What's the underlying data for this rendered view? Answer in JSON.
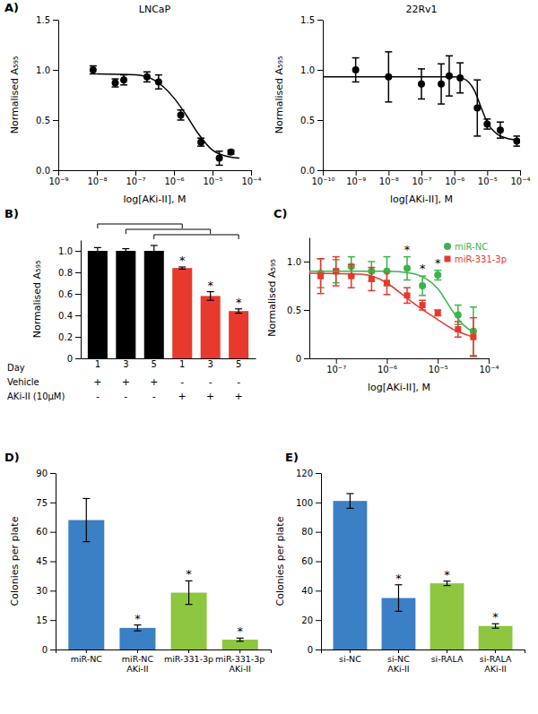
{
  "chart_data": [
    {
      "type": "scatter",
      "panel": "A)",
      "title": "LNCaP",
      "xlabel": "log[AKi-II], M",
      "ylabel": "Normalised A₅₉₅",
      "log": "x",
      "xlim": [
        1e-09,
        0.0001
      ],
      "xticks": [
        {
          "value": 1e-09,
          "label": "10⁻⁹"
        },
        {
          "value": 1e-08,
          "label": "10⁻⁸"
        },
        {
          "value": 1e-07,
          "label": "10⁻⁷"
        },
        {
          "value": 1e-06,
          "label": "10⁻⁶"
        },
        {
          "value": 1e-05,
          "label": "10⁻⁵"
        },
        {
          "value": 0.0001,
          "label": "10⁻⁴"
        }
      ],
      "ylim": [
        0,
        1.5
      ],
      "yticks": [
        {
          "value": 0,
          "label": "0.0"
        },
        0.5,
        {
          "value": 1,
          "label": "1.0"
        },
        1.5
      ],
      "series": [
        {
          "type": "scatter",
          "marker": "circle",
          "color": "#000000",
          "x": [
            8e-09,
            3e-08,
            5e-08,
            2e-07,
            4e-07,
            1.5e-06,
            5e-06,
            1.5e-05,
            3e-05
          ],
          "values": [
            1.0,
            0.87,
            0.9,
            0.93,
            0.88,
            0.55,
            0.28,
            0.12,
            0.18
          ],
          "errors": [
            0.04,
            0.04,
            0.05,
            0.05,
            0.07,
            0.05,
            0.04,
            0.07,
            0.02
          ]
        },
        {
          "type": "line",
          "color": "#000000",
          "x": [
            1e-08,
            1e-07,
            3e-07,
            1e-06,
            2e-06,
            4e-06,
            1e-05,
            3e-05,
            5e-05
          ],
          "values": [
            0.96,
            0.95,
            0.9,
            0.72,
            0.56,
            0.38,
            0.2,
            0.13,
            0.12
          ]
        }
      ]
    },
    {
      "type": "scatter",
      "title": "22Rv1",
      "xlabel": "log[AKi-II], M",
      "ylabel": "Normalised A₅₉₅",
      "log": "x",
      "xlim": [
        1e-10,
        0.0001
      ],
      "xticks": [
        {
          "value": 1e-10,
          "label": "10⁻¹⁰"
        },
        {
          "value": 1e-09,
          "label": "10⁻⁹"
        },
        {
          "value": 1e-08,
          "label": "10⁻⁸"
        },
        {
          "value": 1e-07,
          "label": "10⁻⁷"
        },
        {
          "value": 1e-06,
          "label": "10⁻⁶"
        },
        {
          "value": 1e-05,
          "label": "10⁻⁵"
        },
        {
          "value": 0.0001,
          "label": "10⁻⁴"
        }
      ],
      "ylim": [
        0,
        1.5
      ],
      "yticks": [
        {
          "value": 0,
          "label": "0.0"
        },
        0.5,
        {
          "value": 1,
          "label": "1.0"
        },
        1.5
      ],
      "series": [
        {
          "type": "scatter",
          "marker": "circle",
          "color": "#000000",
          "x": [
            1e-09,
            1e-08,
            1e-07,
            4e-07,
            7e-07,
            1.5e-06,
            5e-06,
            1e-05,
            2.5e-05,
            8e-05
          ],
          "values": [
            1.0,
            0.93,
            0.86,
            0.86,
            0.94,
            0.92,
            0.62,
            0.46,
            0.4,
            0.29
          ],
          "errors": [
            0.12,
            0.25,
            0.15,
            0.2,
            0.2,
            0.15,
            0.28,
            0.05,
            0.08,
            0.05
          ]
        },
        {
          "type": "line",
          "color": "#000000",
          "x": [
            1e-10,
            1e-06,
            2e-06,
            4e-06,
            7e-06,
            1e-05,
            2e-05,
            5e-05,
            0.0001
          ],
          "values": [
            0.93,
            0.93,
            0.91,
            0.8,
            0.6,
            0.48,
            0.36,
            0.31,
            0.3
          ]
        }
      ]
    },
    {
      "type": "bar",
      "panel": "B)",
      "ylabel": "Normalised A₅₉₅",
      "ylim": [
        0,
        1.1
      ],
      "yticks": [
        0,
        0.2,
        0.4,
        0.6,
        0.8,
        {
          "value": 1,
          "label": "1.0"
        }
      ],
      "category_label": "Day",
      "categories": [
        "1",
        "3",
        "5",
        "1",
        "3",
        "5"
      ],
      "rows": [
        {
          "label": "Vehicle",
          "cells": [
            "+",
            "+",
            "+",
            "-",
            "-",
            "-"
          ]
        },
        {
          "label": "AKi-II (10μM)",
          "cells": [
            "-",
            "-",
            "-",
            "+",
            "+",
            "+"
          ]
        }
      ],
      "values": [
        1.0,
        1.0,
        1.0,
        0.84,
        0.58,
        0.44
      ],
      "errors": [
        0.03,
        0.02,
        0.05,
        0.01,
        0.04,
        0.02
      ],
      "colors": [
        "#000000",
        "#000000",
        "#000000",
        "#e8392e",
        "#e8392e",
        "#e8392e"
      ],
      "annotations": [
        {
          "text": "*",
          "index": 3
        },
        {
          "text": "*",
          "index": 4
        },
        {
          "text": "*",
          "index": 5
        }
      ]
    },
    {
      "type": "scatter",
      "panel": "C)",
      "xlabel": "log[AKi-II], M",
      "ylabel": "Normalised A₅₉₅",
      "log": "x",
      "legend": "top-right",
      "xlim": [
        3e-08,
        0.0001
      ],
      "xticks": [
        {
          "value": 1e-07,
          "label": "10⁻⁷"
        },
        {
          "value": 1e-06,
          "label": "10⁻⁶"
        },
        {
          "value": 1e-05,
          "label": "10⁻⁵"
        },
        {
          "value": 0.0001,
          "label": "10⁻⁴"
        }
      ],
      "ylim": [
        0,
        1.25
      ],
      "yticks": [
        0,
        0.5,
        {
          "value": 1,
          "label": "1.0"
        }
      ],
      "series": [
        {
          "name": "miR-NC",
          "type": "scatter",
          "marker": "circle",
          "color": "#3cb44b",
          "x": [
            5e-08,
            1e-07,
            2e-07,
            5e-07,
            1e-06,
            2.5e-06,
            5e-06,
            1e-05,
            2.5e-05,
            5e-05
          ],
          "values": [
            0.88,
            0.9,
            0.95,
            0.9,
            0.9,
            0.93,
            0.75,
            0.86,
            0.45,
            0.28
          ],
          "errors": [
            0.15,
            0.12,
            0.1,
            0.1,
            0.15,
            0.12,
            0.1,
            0.05,
            0.1,
            0.25
          ]
        },
        {
          "name": "miR-331-3p",
          "type": "scatter",
          "marker": "square",
          "color": "#e8392e",
          "x": [
            5e-08,
            1e-07,
            2e-07,
            5e-07,
            1e-06,
            2.5e-06,
            5e-06,
            1e-05,
            2.5e-05,
            5e-05
          ],
          "values": [
            0.85,
            0.9,
            0.85,
            0.82,
            0.78,
            0.65,
            0.55,
            0.47,
            0.3,
            0.22
          ],
          "errors": [
            0.18,
            0.15,
            0.12,
            0.12,
            0.12,
            0.08,
            0.05,
            0.03,
            0.08,
            0.2
          ]
        },
        {
          "type": "line",
          "color": "#3cb44b",
          "x": [
            3e-08,
            1e-06,
            3e-06,
            6e-06,
            1e-05,
            2e-05,
            3e-05,
            5e-05
          ],
          "values": [
            0.9,
            0.9,
            0.88,
            0.82,
            0.72,
            0.48,
            0.36,
            0.27
          ]
        },
        {
          "type": "line",
          "color": "#e8392e",
          "x": [
            3e-08,
            3e-07,
            1e-06,
            2e-06,
            4e-06,
            1e-05,
            2e-05,
            5e-05
          ],
          "values": [
            0.88,
            0.87,
            0.78,
            0.66,
            0.54,
            0.4,
            0.3,
            0.22
          ]
        }
      ],
      "annotations": [
        {
          "text": "*",
          "x": 2.5e-06
        },
        {
          "text": "*",
          "x": 5e-06
        },
        {
          "text": "*",
          "x": 1e-05
        }
      ]
    },
    {
      "type": "bar",
      "panel": "D)",
      "ylabel": "Colonies per plate",
      "ylim": [
        0,
        90
      ],
      "yticks": [
        0,
        15,
        30,
        45,
        60,
        75,
        90
      ],
      "categories": [
        "miR-NC",
        "miR-NC\nAKi-II",
        "miR-331-3p",
        "miR-331-3p\nAKi-II"
      ],
      "values": [
        66,
        11,
        29,
        5
      ],
      "errors": [
        11,
        1.5,
        6,
        0.8
      ],
      "colors": [
        "#3b7fc4",
        "#3b7fc4",
        "#8dc63f",
        "#8dc63f"
      ],
      "annotations": [
        {
          "text": "*",
          "index": 1
        },
        {
          "text": "*",
          "index": 2
        },
        {
          "text": "*",
          "index": 3
        }
      ]
    },
    {
      "type": "bar",
      "panel": "E)",
      "ylabel": "Colonies per plate",
      "ylim": [
        0,
        120
      ],
      "yticks": [
        0,
        20,
        40,
        60,
        80,
        100,
        120
      ],
      "categories": [
        "si-NC",
        "si-NC\nAKi-II",
        "si-RALA",
        "si-RALA\nAKi-II"
      ],
      "values": [
        101,
        35,
        45,
        16
      ],
      "errors": [
        5,
        9,
        1.5,
        1.5
      ],
      "colors": [
        "#3b7fc4",
        "#3b7fc4",
        "#8dc63f",
        "#8dc63f"
      ],
      "annotations": [
        {
          "text": "*",
          "index": 1
        },
        {
          "text": "*",
          "index": 2
        },
        {
          "text": "*",
          "index": 3
        }
      ]
    }
  ]
}
